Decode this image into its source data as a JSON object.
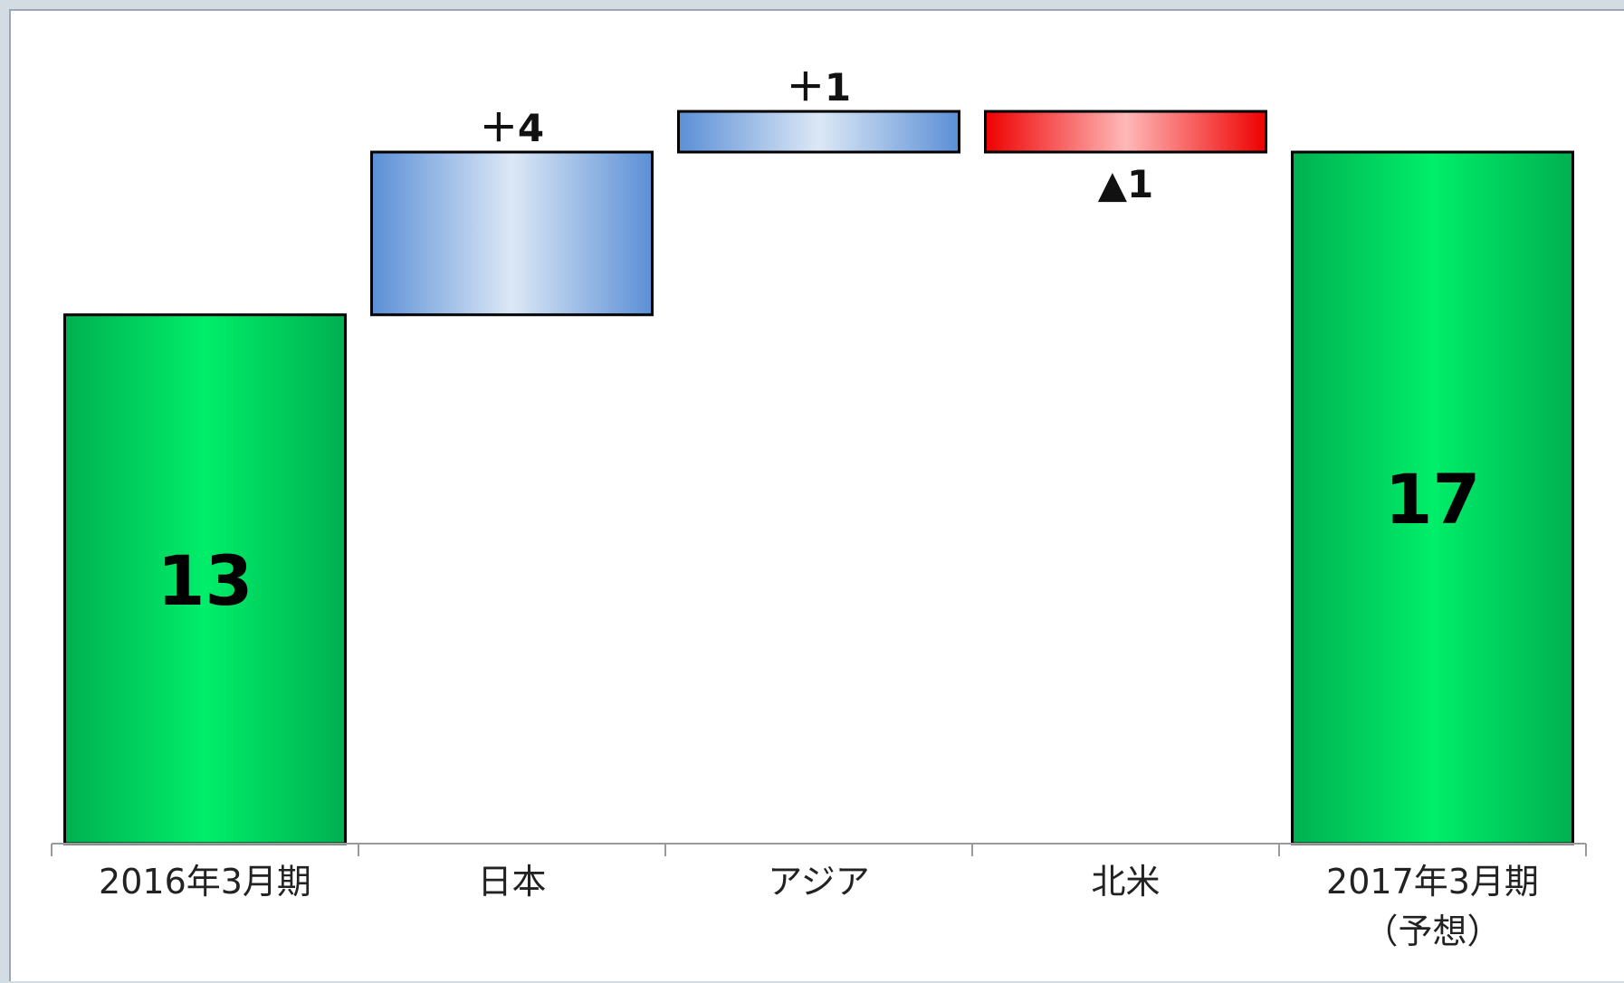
{
  "chart_data": {
    "type": "bar",
    "subtype": "waterfall",
    "categories": [
      {
        "line1": "2016年3月期",
        "line2": ""
      },
      {
        "line1": "日本",
        "line2": ""
      },
      {
        "line1": "アジア",
        "line2": ""
      },
      {
        "line1": "北米",
        "line2": ""
      },
      {
        "line1": "2017年3月期",
        "line2": "（予想）"
      }
    ],
    "items": [
      {
        "kind": "total",
        "value": 13,
        "label": "13",
        "label_position": "inside"
      },
      {
        "kind": "delta",
        "value": 4,
        "label": "＋4",
        "label_position": "above"
      },
      {
        "kind": "delta",
        "value": 1,
        "label": "＋1",
        "label_position": "above"
      },
      {
        "kind": "delta",
        "value": -1,
        "label": "▲1",
        "label_position": "below"
      },
      {
        "kind": "total",
        "value": 17,
        "label": "17",
        "label_position": "inside"
      }
    ],
    "ylim": [
      0,
      18
    ],
    "grid": false,
    "title": "",
    "xlabel": "",
    "ylabel": "",
    "colors": {
      "total_edge": "#00b050",
      "total_center": "#00ee6a",
      "increase_edge": "#5b8fd6",
      "increase_center": "#dce8f6",
      "decrease_edge": "#ee0000",
      "decrease_center": "#ffb8b8",
      "bar_outline": "#000000",
      "axis": "#9a9a9a"
    }
  }
}
